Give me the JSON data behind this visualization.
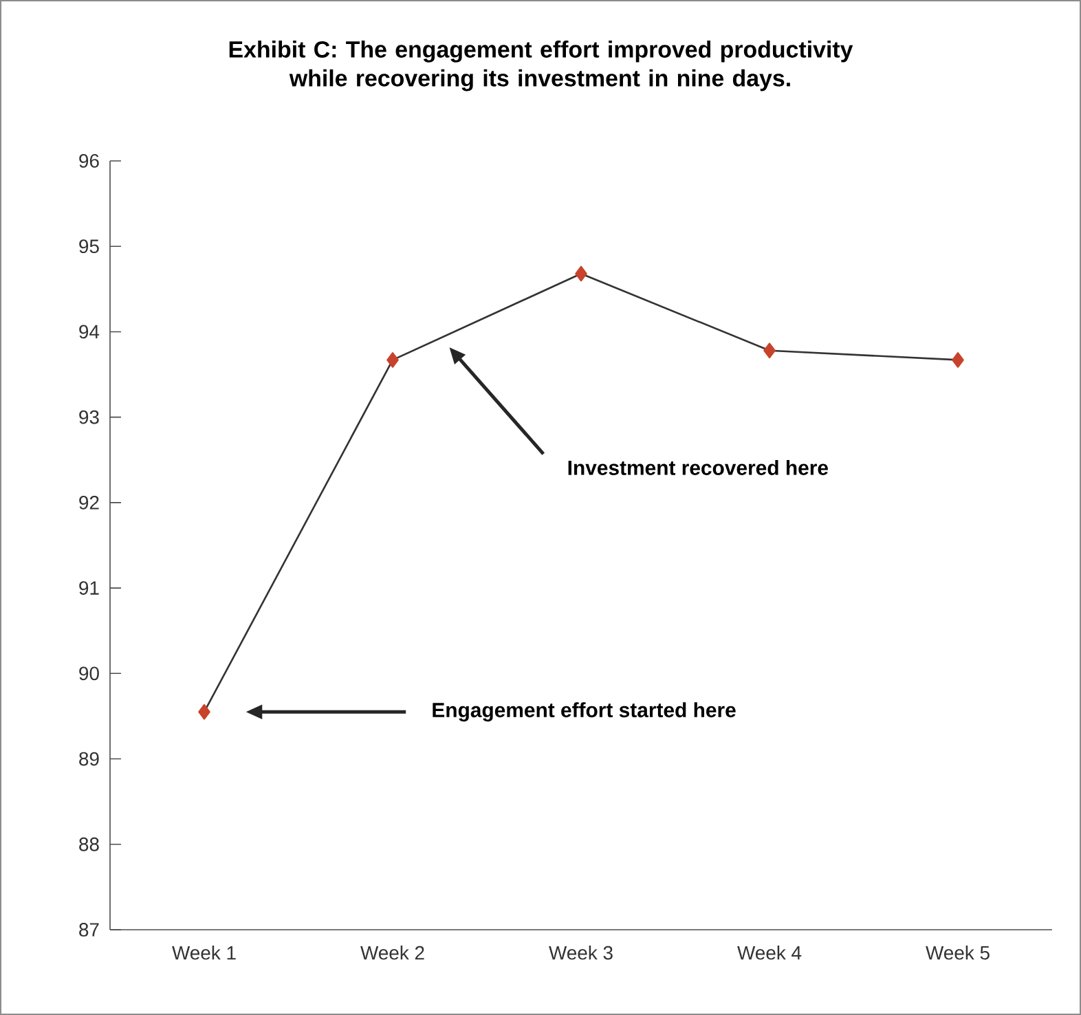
{
  "chart_data": {
    "type": "line",
    "title": "Exhibit C: The engagement effort improved productivity while recovering its investment in nine days.",
    "categories": [
      "Week 1",
      "Week 2",
      "Week 3",
      "Week 4",
      "Week 5"
    ],
    "series": [
      {
        "color": "#c8432b",
        "values": [
          89.55,
          93.67,
          94.68,
          93.78,
          93.67
        ]
      }
    ],
    "ylim": [
      87,
      96
    ],
    "yticks": [
      87,
      88,
      89,
      90,
      91,
      92,
      93,
      94,
      95,
      96
    ],
    "marker": "diamond",
    "line_style": "solid",
    "grid": false,
    "annotations": [
      "Engagement effort started here",
      "Investment recovered here"
    ]
  }
}
